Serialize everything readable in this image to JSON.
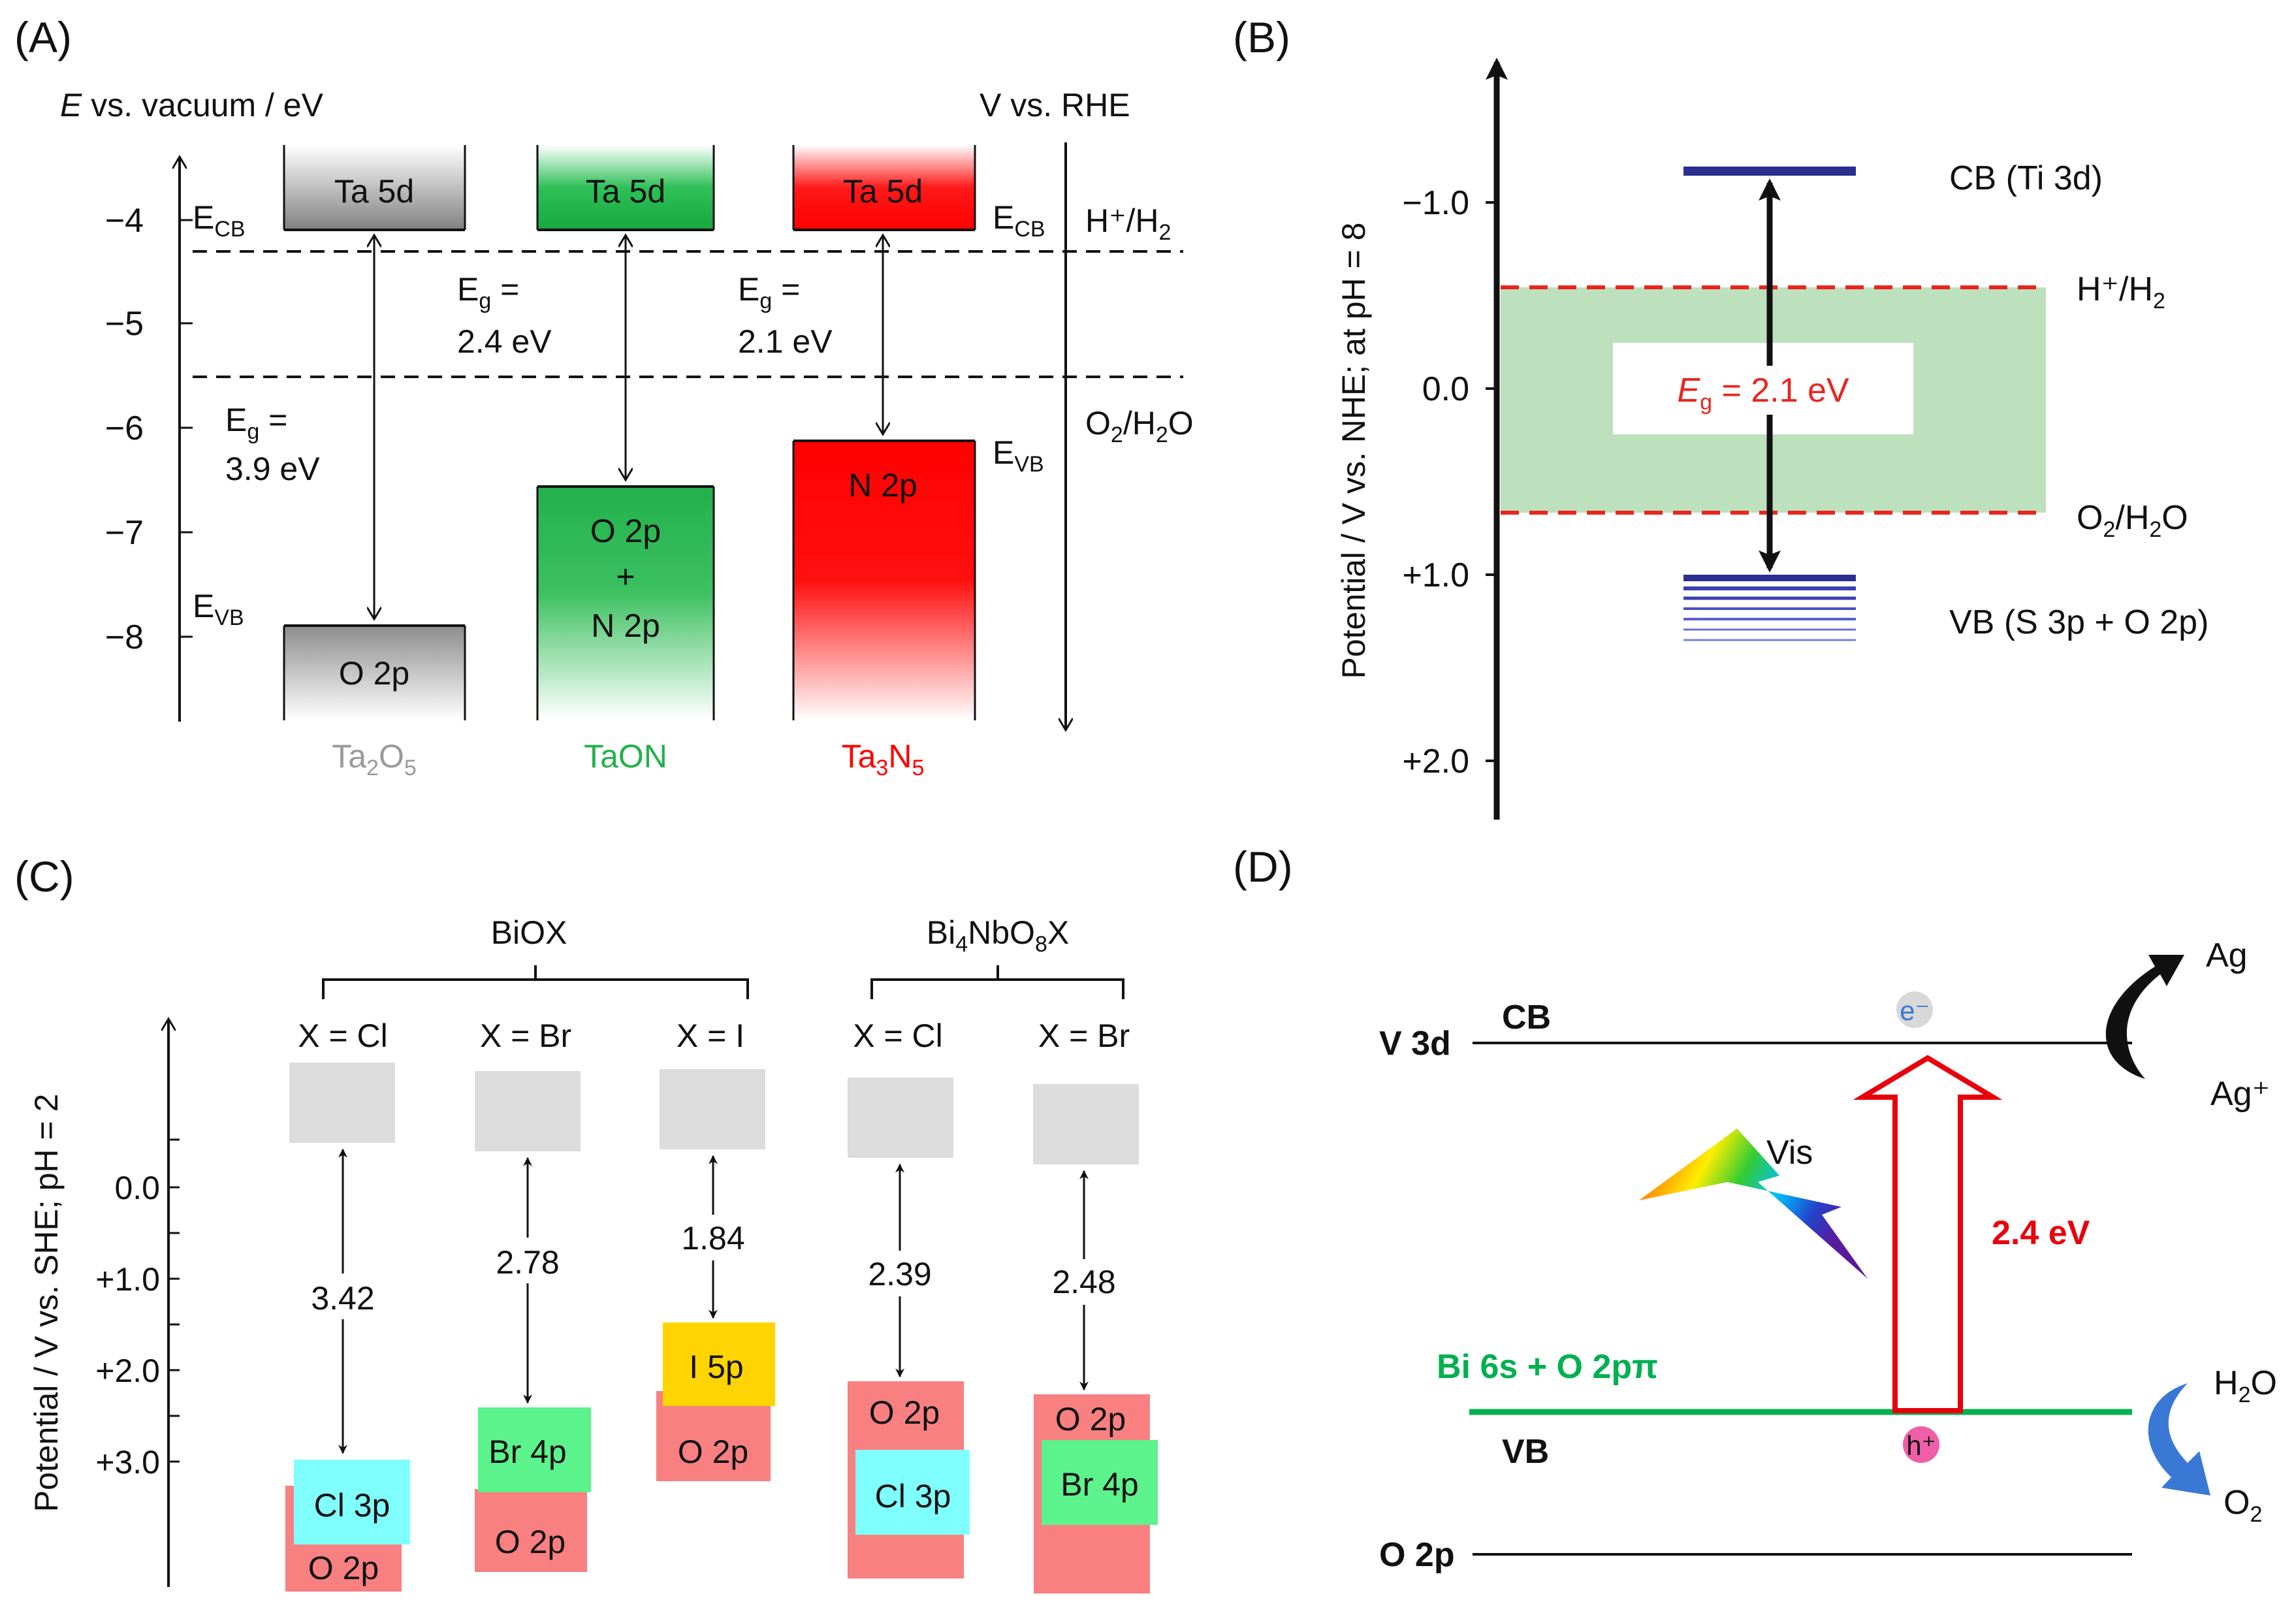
{
  "panel_a": {
    "label": "(A)",
    "y_axis_title_italic": "E",
    "y_axis_title_rest": " vs. vacuum / eV",
    "right_axis_title": "V vs. RHE",
    "y_ticks": [
      "−4",
      "−5",
      "−6",
      "−7",
      "−8"
    ],
    "e_cb_main": "E",
    "e_cb_sub": "CB",
    "e_vb_main": "E",
    "e_vb_sub": "VB",
    "h_couple": "H⁺/H",
    "h_couple_sub": "2",
    "o_couple_a": "O",
    "o_couple_sub1": "2",
    "o_couple_b": "/H",
    "o_couple_sub2": "2",
    "o_couple_c": "O",
    "materials": [
      {
        "name": "Ta",
        "sub1": "2",
        "mid": "O",
        "sub2": "5",
        "color": "#9a9a9a",
        "cb": "Ta 5d",
        "vb": "O 2p",
        "eg_main": "E",
        "eg_sub": "g",
        "eg_eq": " =",
        "eg_val": "3.9 eV"
      },
      {
        "name": "TaON",
        "color": "#22b14c",
        "cb": "Ta 5d",
        "vb1": "O 2p",
        "vb_plus": "+",
        "vb2": "N 2p",
        "eg_main": "E",
        "eg_sub": "g",
        "eg_eq": " =",
        "eg_val": "2.4 eV"
      },
      {
        "name": "Ta",
        "sub1": "3",
        "mid": "N",
        "sub2": "5",
        "color": "#ff0000",
        "cb": "Ta 5d",
        "vb": "N 2p",
        "eg_main": "E",
        "eg_sub": "g",
        "eg_eq": " =",
        "eg_val": "2.1 eV"
      }
    ]
  },
  "panel_b": {
    "label": "(B)",
    "axis_title": "Potential / V vs. NHE; at pH = 8",
    "ticks": [
      "−1.0",
      "0.0",
      "+1.0",
      "+2.0"
    ],
    "cb_label": "CB (Ti 3d)",
    "vb_label": "VB (S 3p + O 2p)",
    "h_couple": "H⁺/H",
    "h_sub": "2",
    "o_a": "O",
    "o_sub1": "2",
    "o_b": "/H",
    "o_sub2": "2",
    "o_c": "O",
    "eg_main": "E",
    "eg_sub": "g",
    "eg_rest": " = 2.1 eV",
    "eg_color": "#e8251f"
  },
  "panel_c": {
    "label": "(C)",
    "axis_title": "Potential / V vs. SHE; pH = 2",
    "ticks": [
      "0.0",
      "+1.0",
      "+2.0",
      "+3.0"
    ],
    "group1": "BiOX",
    "group2_a": "Bi",
    "group2_sub1": "4",
    "group2_b": "NbO",
    "group2_sub2": "8",
    "group2_c": "X",
    "columns": [
      {
        "x_label": "X = Cl",
        "gap": "3.42",
        "vb_top": "Cl 3p",
        "vb_bottom": "O 2p"
      },
      {
        "x_label": "X = Br",
        "gap": "2.78",
        "vb_top": "Br 4p",
        "vb_bottom": "O 2p"
      },
      {
        "x_label": "X = I",
        "gap": "1.84",
        "vb_top": "I 5p",
        "vb_bottom": "O 2p"
      },
      {
        "x_label": "X = Cl",
        "gap": "2.39",
        "vb_top": "O 2p",
        "vb_bottom": "Cl 3p"
      },
      {
        "x_label": "X = Br",
        "gap": "2.48",
        "vb_top": "O 2p",
        "vb_bottom": "Br 4p"
      }
    ],
    "colors": {
      "cb": "#dcdcdc",
      "o2p": "#f88080",
      "cl3p": "#80ffff",
      "br4p": "#5cf28c",
      "i5p": "#ffd400"
    }
  },
  "panel_d": {
    "label": "(D)",
    "v3d": "V 3d",
    "cb": "CB",
    "vb": "VB",
    "o2p": "O 2p",
    "vb_level": "Bi 6s + O 2pπ",
    "vis": "Vis",
    "gap": "2.4 eV",
    "electron": "e⁻",
    "hole": "h⁺",
    "ag": "Ag",
    "ag_plus": "Ag⁺",
    "h2o_a": "H",
    "h2o_sub": "2",
    "h2o_b": "O",
    "o2_a": "O",
    "o2_sub": "2",
    "colors": {
      "vb_line": "#00b050",
      "gap": "#e8000b",
      "h2o_arrow": "#3a78d6"
    }
  }
}
